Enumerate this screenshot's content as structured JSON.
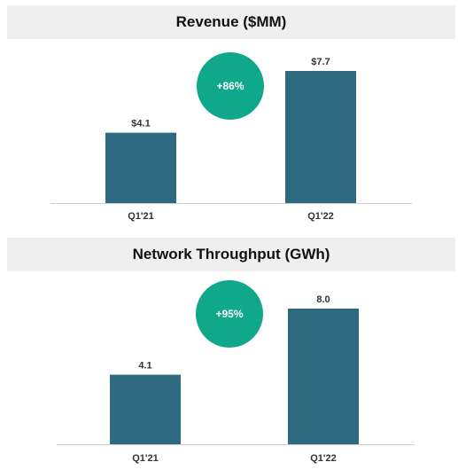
{
  "colors": {
    "bar": "#2e6b80",
    "badge": "#0fa88a",
    "axis": "#cfcfcf",
    "title_bg": "#efefef"
  },
  "chart_data": [
    {
      "type": "bar",
      "title": "Revenue ($MM)",
      "categories": [
        "Q1'21",
        "Q1'22"
      ],
      "values": [
        4.1,
        7.7
      ],
      "value_labels": [
        "$4.1",
        "$7.7"
      ],
      "ylim": [
        0,
        9.2
      ],
      "grid": false,
      "annotation": "+86%"
    },
    {
      "type": "bar",
      "title": "Network Throughput (GWh)",
      "categories": [
        "Q1'21",
        "Q1'22"
      ],
      "values": [
        4.1,
        8.0
      ],
      "value_labels": [
        "4.1",
        "8.0"
      ],
      "ylim": [
        0,
        9.2
      ],
      "grid": false,
      "annotation": "+95%"
    }
  ]
}
